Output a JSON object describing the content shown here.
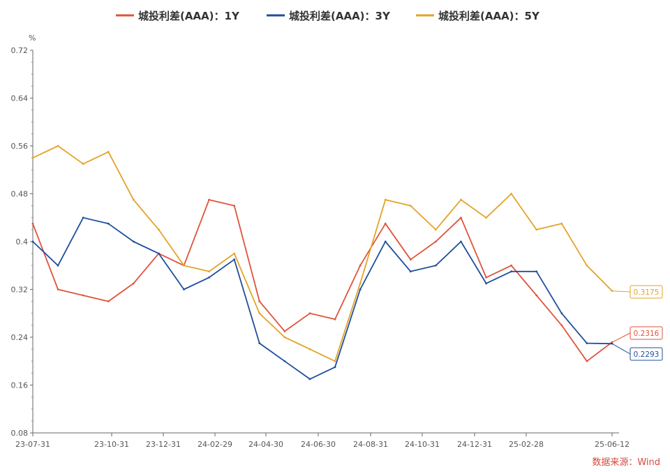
{
  "chart_data": {
    "type": "line",
    "ylabel": "%",
    "ylim": [
      0.08,
      0.72
    ],
    "yticks": [
      "0.08",
      "0.16",
      "0.24",
      "0.32",
      "0.4",
      "0.48",
      "0.56",
      "0.64",
      "0.72"
    ],
    "xtick_labels": [
      "23-07-31",
      "23-10-31",
      "23-12-31",
      "24-02-29",
      "24-04-30",
      "24-06-30",
      "24-08-31",
      "24-10-31",
      "24-12-31",
      "25-02-28",
      "25-06-12"
    ],
    "x": [
      "23-07-31",
      "23-08-31",
      "23-09-30",
      "23-10-31",
      "23-11-30",
      "23-12-31",
      "24-01-31",
      "24-02-29",
      "24-03-31",
      "24-04-30",
      "24-05-31",
      "24-06-30",
      "24-07-31",
      "24-08-31",
      "24-09-30",
      "24-10-31",
      "24-11-30",
      "24-12-31",
      "25-01-31",
      "25-02-28",
      "25-03-31",
      "25-04-30",
      "25-05-31",
      "25-06-12"
    ],
    "legend_position": "top-center",
    "grid": false,
    "series": [
      {
        "name": "城投利差(AAA)：1Y",
        "color": "#e0533b",
        "values": [
          0.43,
          0.32,
          0.31,
          0.3,
          0.33,
          0.38,
          0.36,
          0.47,
          0.46,
          0.3,
          0.25,
          0.28,
          0.27,
          0.36,
          0.43,
          0.37,
          0.4,
          0.44,
          0.34,
          0.36,
          0.31,
          0.26,
          0.2,
          0.2316
        ],
        "end_label": "0.2316"
      },
      {
        "name": "城投利差(AAA)：3Y",
        "color": "#1f4e9c",
        "values": [
          0.4,
          0.36,
          0.44,
          0.43,
          0.4,
          0.38,
          0.32,
          0.34,
          0.37,
          0.23,
          0.2,
          0.17,
          0.19,
          0.32,
          0.4,
          0.35,
          0.36,
          0.4,
          0.33,
          0.35,
          0.35,
          0.28,
          0.23,
          0.2293
        ],
        "end_label": "0.2293"
      },
      {
        "name": "城投利差(AAA)：5Y",
        "color": "#e3a327",
        "values": [
          0.54,
          0.56,
          0.53,
          0.55,
          0.47,
          0.42,
          0.36,
          0.35,
          0.38,
          0.28,
          0.24,
          0.22,
          0.2,
          0.33,
          0.47,
          0.46,
          0.42,
          0.47,
          0.44,
          0.48,
          0.42,
          0.43,
          0.36,
          0.3175
        ],
        "end_label": "0.3175"
      }
    ]
  },
  "source": "数据来源：Wind"
}
